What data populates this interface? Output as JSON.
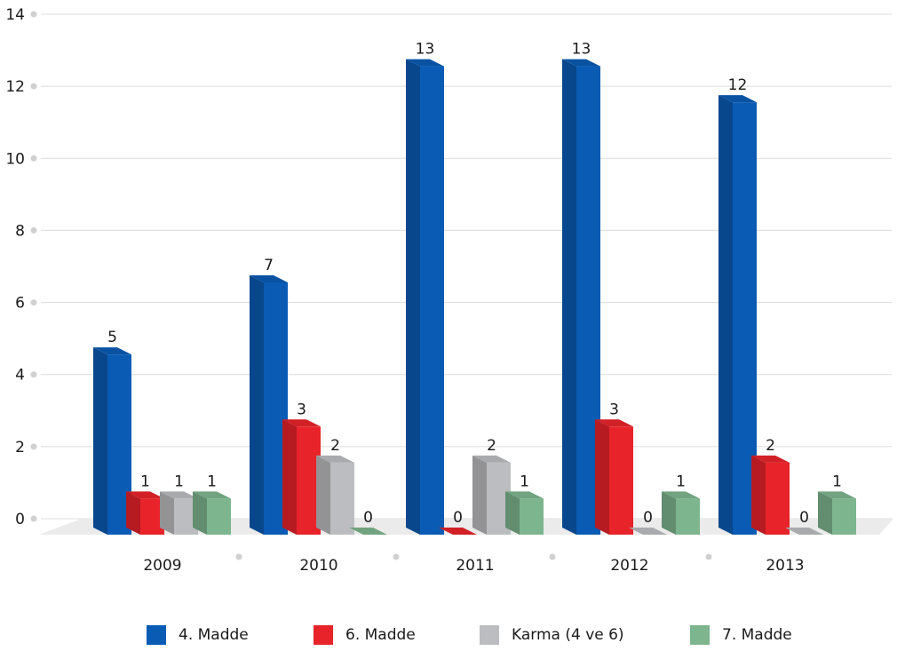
{
  "chart_data": {
    "type": "bar",
    "categories": [
      "2009",
      "2010",
      "2011",
      "2012",
      "2013"
    ],
    "series": [
      {
        "name": "4. Madde",
        "values": [
          5,
          7,
          13,
          13,
          12
        ],
        "color": "#0a5bb4"
      },
      {
        "name": "6. Madde",
        "values": [
          1,
          3,
          0,
          3,
          2
        ],
        "color": "#e8232a"
      },
      {
        "name": "Karma (4 ve 6)",
        "values": [
          1,
          2,
          2,
          0,
          0
        ],
        "color": "#bcbdc0"
      },
      {
        "name": "7. Madde",
        "values": [
          1,
          0,
          1,
          1,
          1
        ],
        "color": "#7db58e"
      }
    ],
    "y_ticks": [
      "0",
      "2",
      "4",
      "6",
      "8",
      "10",
      "12",
      "14"
    ],
    "ylim": [
      0,
      14
    ],
    "grid": true,
    "legend_position": "bottom",
    "three_d": true
  }
}
